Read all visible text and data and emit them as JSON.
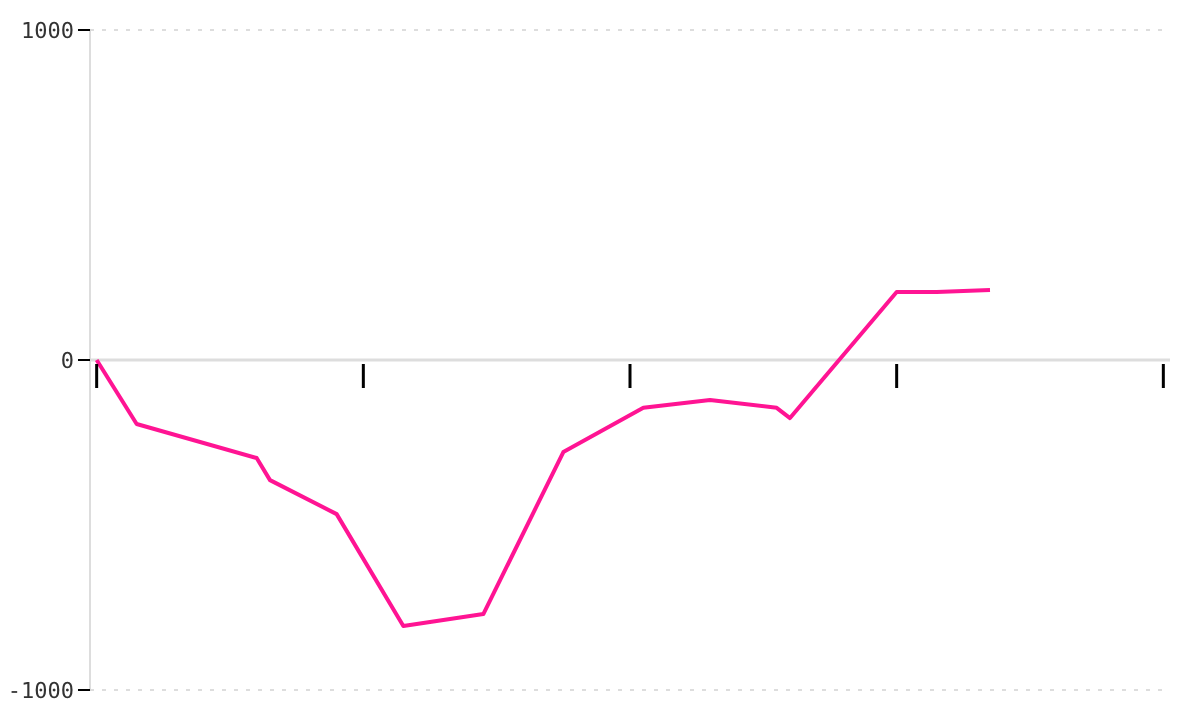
{
  "chart_data": {
    "type": "line",
    "tick_labels": "y",
    "grid": "y",
    "line_style": "solid",
    "marker": "none",
    "categories": [
      null,
      null,
      null,
      null,
      null,
      null,
      null,
      null,
      null,
      null,
      null,
      null,
      null,
      null,
      null,
      null,
      null,
      null,
      null,
      null,
      null,
      null,
      null,
      null,
      null,
      null,
      null,
      null,
      null,
      null,
      null,
      null,
      null,
      null,
      null,
      null,
      null,
      null,
      null,
      null,
      null,
      null,
      null,
      null,
      null,
      null,
      null,
      null,
      null,
      null,
      null,
      null,
      null,
      null,
      null,
      null,
      null,
      null,
      null,
      null,
      null,
      null,
      null,
      null,
      null,
      null,
      null,
      null,
      null,
      null,
      null,
      null,
      null,
      null,
      null,
      null,
      null,
      null,
      null,
      null,
      null
    ],
    "ylim": [
      -1000,
      1000
    ],
    "yticks": [
      -1000,
      0,
      1000
    ],
    "series": [
      {
        "color": "#ff1493",
        "values": [
          0,
          null,
          null,
          -194,
          null,
          null,
          null,
          null,
          null,
          null,
          null,
          null,
          -297,
          -364,
          null,
          null,
          null,
          null,
          -467,
          null,
          null,
          null,
          null,
          -806,
          null,
          null,
          null,
          null,
          null,
          -770,
          null,
          null,
          null,
          null,
          null,
          -279,
          null,
          null,
          null,
          null,
          null,
          -145,
          null,
          null,
          null,
          null,
          -121,
          null,
          null,
          null,
          null,
          -145,
          -176,
          null,
          null,
          null,
          null,
          null,
          null,
          null,
          206,
          null,
          null,
          206,
          null,
          null,
          null,
          212,
          null,
          null,
          null,
          null,
          null,
          null,
          null,
          null,
          null,
          null,
          null,
          null,
          null
        ]
      }
    ]
  }
}
